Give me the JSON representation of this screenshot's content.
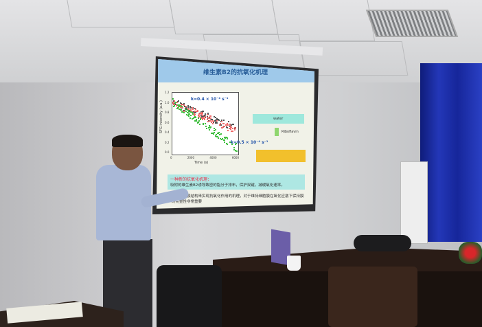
{
  "slide": {
    "title": "维生素B2的抗氧化机理",
    "plot": {
      "y_axis_label": "SFG intensity (a.u.)",
      "x_axis_label": "Time (s)",
      "x_ticks": [
        "0",
        "2000",
        "4000",
        "6000"
      ],
      "y_ticks": [
        "1.2",
        "1.0",
        "0.8",
        "0.6",
        "0.4",
        "0.2",
        "0.0"
      ],
      "annotation_top": "k=0.4 × 10⁻⁴ s⁻¹",
      "annotation_bottom": "k=0.5 × 10⁻⁴ s⁻¹",
      "series_colors": [
        "#555555",
        "#f06a6a",
        "#3fbf3f"
      ]
    },
    "diagram": {
      "top_label": "water",
      "arrow_label": "Riboflavin"
    },
    "highlight_heading": "一种新的抗氧化机理：",
    "highlight_body": "吸附的维生素B2诱导致密的脂分子排布，保护双键，减缓氧化速率。",
    "note": "通过调节膜结构来实现抗氧化作用的机理，对于维持细胞膜在氧化应激下保持膜的完整性非常重要"
  }
}
